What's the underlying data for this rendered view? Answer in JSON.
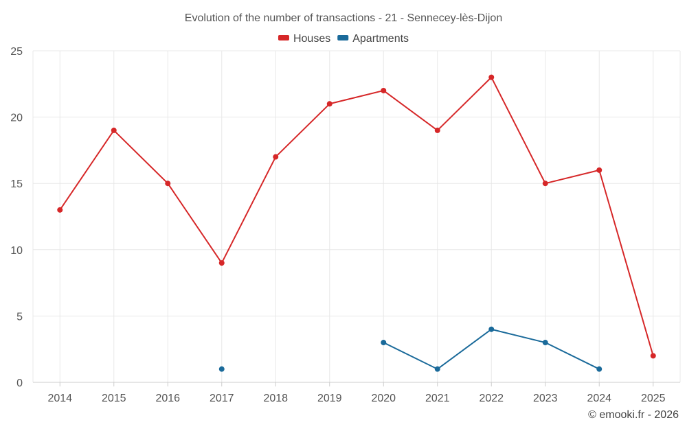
{
  "chart_data": {
    "type": "line",
    "title": "Evolution of the number of transactions - 21 - Sennecey-lès-Dijon",
    "xlabel": "",
    "ylabel": "",
    "categories": [
      "2014",
      "2015",
      "2016",
      "2017",
      "2018",
      "2019",
      "2020",
      "2021",
      "2022",
      "2023",
      "2024",
      "2025"
    ],
    "ylim": [
      0,
      25
    ],
    "yticks": [
      0,
      5,
      10,
      15,
      20,
      25
    ],
    "grid": true,
    "legend_position": "top-center",
    "series": [
      {
        "name": "Houses",
        "color": "#d62728",
        "values": [
          13,
          19,
          15,
          9,
          17,
          21,
          22,
          19,
          23,
          15,
          16,
          2
        ]
      },
      {
        "name": "Apartments",
        "color": "#1a6a9a",
        "values": [
          null,
          null,
          null,
          1,
          null,
          null,
          3,
          1,
          4,
          3,
          1,
          null
        ]
      }
    ]
  },
  "credit": "© emooki.fr - 2026"
}
